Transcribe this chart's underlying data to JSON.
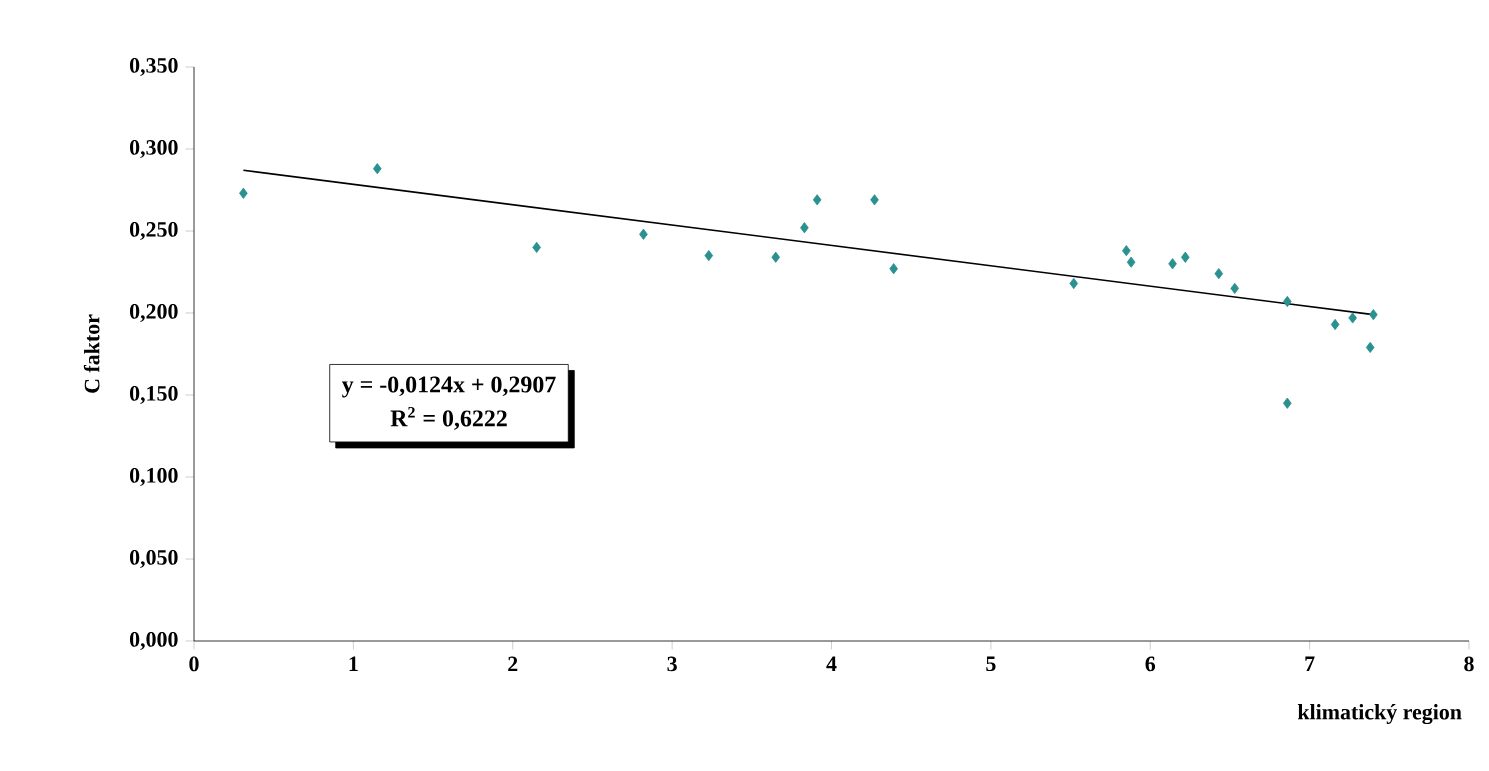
{
  "chart_data": {
    "type": "scatter",
    "xlabel": "klimatický region",
    "ylabel": "C faktor",
    "xlim": [
      0,
      8
    ],
    "ylim": [
      0,
      0.35
    ],
    "xticks": [
      0,
      1,
      2,
      3,
      4,
      5,
      6,
      7,
      8
    ],
    "yticks": [
      {
        "value": 0,
        "label": "0,000"
      },
      {
        "value": 0.05,
        "label": "0,050"
      },
      {
        "value": 0.1,
        "label": "0,100"
      },
      {
        "value": 0.15,
        "label": "0,150"
      },
      {
        "value": 0.2,
        "label": "0,200"
      },
      {
        "value": 0.25,
        "label": "0,250"
      },
      {
        "value": 0.3,
        "label": "0,300"
      },
      {
        "value": 0.35,
        "label": "0,350"
      }
    ],
    "grid": false,
    "marker": "diamond",
    "series": [
      {
        "color": "#2a9090",
        "x": [
          0.31,
          1.15,
          2.15,
          2.82,
          3.23,
          3.65,
          3.83,
          3.91,
          4.27,
          4.39,
          5.52,
          5.85,
          5.88,
          6.14,
          6.22,
          6.43,
          6.53,
          6.86,
          6.86,
          7.16,
          7.27,
          7.38,
          7.4
        ],
        "values": [
          0.273,
          0.288,
          0.24,
          0.248,
          0.235,
          0.234,
          0.252,
          0.269,
          0.269,
          0.227,
          0.218,
          0.238,
          0.231,
          0.23,
          0.234,
          0.224,
          0.215,
          0.207,
          0.145,
          0.193,
          0.197,
          0.179,
          0.199
        ]
      },
      {
        "type": "line",
        "color": "#000000",
        "marker": "none",
        "x": [
          0.31,
          7.4
        ],
        "values": [
          0.287,
          0.199
        ]
      }
    ],
    "annotations": [
      "y = -0,0124x + 0,2907",
      "R$^{2}$ = 0,6222"
    ]
  }
}
